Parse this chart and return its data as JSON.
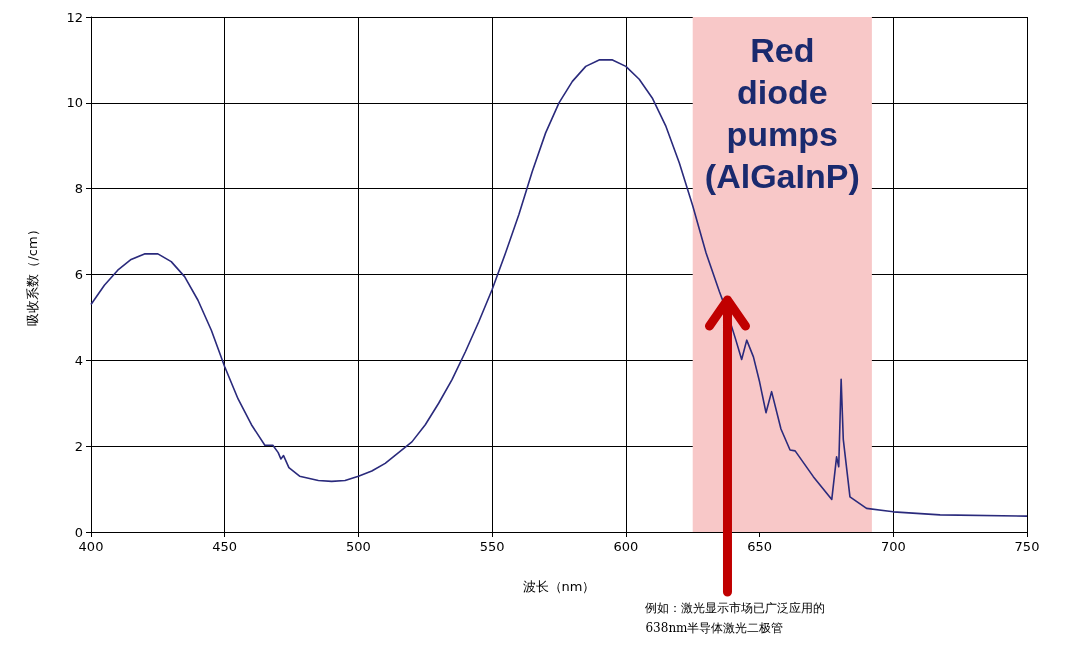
{
  "chart_data": {
    "type": "line",
    "xlabel": "波长（nm）",
    "ylabel": "吸收系数（/cm）",
    "xlim": [
      400,
      750
    ],
    "xticks": [
      400,
      450,
      500,
      550,
      600,
      650,
      700,
      750
    ],
    "ylim": [
      0,
      12
    ],
    "yticks": [
      0,
      2,
      4,
      6,
      8,
      10,
      12
    ],
    "grid": true,
    "marker": "none",
    "line_style": "solid",
    "series": [
      {
        "color": "#2a2a7c",
        "x": [
          400,
          405,
          410,
          415,
          420,
          425,
          430,
          435,
          440,
          445,
          450,
          455,
          460,
          465,
          468,
          470,
          471,
          472,
          474,
          478,
          485,
          490,
          495,
          500,
          505,
          510,
          515,
          520,
          525,
          530,
          535,
          540,
          545,
          550,
          555,
          560,
          565,
          570,
          575,
          580,
          585,
          590,
          595,
          600,
          605,
          610,
          615,
          620,
          625,
          630,
          635,
          638,
          641,
          643.3,
          645.2,
          647.7,
          650,
          652.4,
          654.5,
          658,
          661.4,
          663.3,
          670.1,
          677,
          678.8,
          679.6,
          680.5,
          681.3,
          683.8,
          690,
          700,
          717.5,
          750
        ],
        "values": [
          5.3,
          5.75,
          6.1,
          6.35,
          6.48,
          6.48,
          6.3,
          5.95,
          5.4,
          4.7,
          3.85,
          3.1,
          2.5,
          2.02,
          2.02,
          1.85,
          1.7,
          1.78,
          1.5,
          1.3,
          1.2,
          1.18,
          1.2,
          1.3,
          1.42,
          1.6,
          1.85,
          2.1,
          2.5,
          3.0,
          3.55,
          4.2,
          4.9,
          5.65,
          6.5,
          7.4,
          8.4,
          9.3,
          10.0,
          10.5,
          10.85,
          11.0,
          11.0,
          10.85,
          10.55,
          10.1,
          9.45,
          8.6,
          7.6,
          6.5,
          5.6,
          5.1,
          4.5,
          4.02,
          4.47,
          4.08,
          3.5,
          2.78,
          3.27,
          2.4,
          1.91,
          1.89,
          1.29,
          0.76,
          1.75,
          1.52,
          3.56,
          2.16,
          0.82,
          0.55,
          0.47,
          0.4,
          0.37
        ]
      }
    ],
    "bands": [
      {
        "axis": "x",
        "from": 625,
        "to": 692,
        "label": "Red diode pumps (AlGaInP)",
        "color": "#f8c8c8"
      }
    ],
    "annotations": [
      {
        "text": "例如：激光显示市场已广泛应用的638nm半导体激光二极管",
        "x": 638,
        "y": 5.5
      }
    ]
  }
}
